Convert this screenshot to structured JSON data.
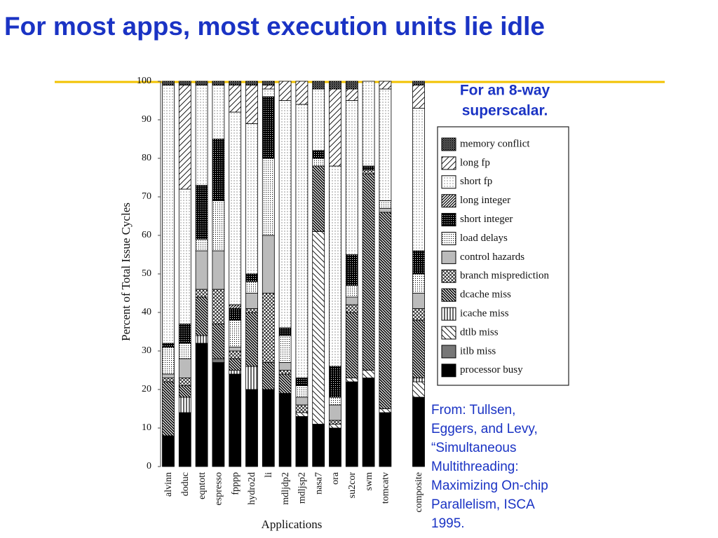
{
  "slide": {
    "title": "For most apps, most execution units lie idle",
    "note": [
      "For an 8-way",
      "superscalar."
    ],
    "source": [
      "From: Tullsen,",
      "Eggers, and Levy,",
      "“Simultaneous",
      "Multithreading:",
      "Maximizing On-chip",
      "Parallelism, ISCA",
      "1995."
    ]
  },
  "chart_data": {
    "type": "stacked-bar",
    "xlabel": "Applications",
    "ylabel": "Percent of Total Issue Cycles",
    "categories": [
      "alvinn",
      "doduc",
      "eqntott",
      "espresso",
      "fpppp",
      "hydro2d",
      "li",
      "mdljdp2",
      "mdljsp2",
      "nasa7",
      "ora",
      "su2cor",
      "swm",
      "tomcatv",
      "composite"
    ],
    "ylim": [
      0,
      100
    ],
    "yticks": [
      0,
      10,
      20,
      30,
      40,
      50,
      60,
      70,
      80,
      90,
      100
    ],
    "legend": "right",
    "series": [
      {
        "name": "processor busy",
        "pattern": "solid-black",
        "values": [
          8,
          14,
          32,
          27,
          24,
          20,
          20,
          19,
          13,
          11,
          10,
          22,
          23,
          14,
          18
        ]
      },
      {
        "name": "itlb miss",
        "pattern": "solid-gray",
        "values": [
          0,
          0,
          0,
          1,
          0,
          0,
          0,
          0,
          0,
          0,
          0,
          0,
          0,
          0,
          0
        ]
      },
      {
        "name": "dtlb miss",
        "pattern": "diag-sparse-back",
        "values": [
          0,
          0,
          0,
          0,
          0,
          0,
          0,
          0,
          1,
          50,
          1,
          1,
          2,
          1,
          4
        ]
      },
      {
        "name": "icache miss",
        "pattern": "vertical",
        "values": [
          0,
          4,
          2,
          0,
          1,
          6,
          0,
          0,
          0,
          0,
          0,
          0,
          0,
          0,
          1
        ]
      },
      {
        "name": "dcache miss",
        "pattern": "diag-dense-back",
        "values": [
          14,
          3,
          10,
          9,
          3,
          14,
          7,
          5,
          0,
          17,
          0,
          17,
          51,
          51,
          15
        ]
      },
      {
        "name": "branch misprediction",
        "pattern": "crosshatch",
        "values": [
          1,
          2,
          2,
          9,
          2,
          1,
          18,
          1,
          2,
          0,
          1,
          2,
          1,
          0,
          3
        ]
      },
      {
        "name": "control hazards",
        "pattern": "solid-lightgray",
        "values": [
          1,
          5,
          10,
          10,
          1,
          4,
          15,
          2,
          2,
          0,
          4,
          2,
          0,
          1,
          4
        ]
      },
      {
        "name": "load delays",
        "pattern": "dots-dense",
        "values": [
          7,
          4,
          3,
          13,
          7,
          3,
          20,
          7,
          3,
          2,
          2,
          3,
          0,
          2,
          5
        ]
      },
      {
        "name": "short integer",
        "pattern": "grid-dense",
        "values": [
          1,
          5,
          14,
          16,
          3,
          2,
          16,
          2,
          2,
          2,
          8,
          8,
          1,
          0,
          6
        ]
      },
      {
        "name": "long integer",
        "pattern": "diag-dense-fwd",
        "values": [
          0,
          0,
          0,
          0,
          1,
          0,
          0,
          0,
          0,
          0,
          0,
          0,
          0,
          0,
          0
        ]
      },
      {
        "name": "short fp",
        "pattern": "dots-sparse",
        "values": [
          67,
          35,
          26,
          14,
          50,
          39,
          2,
          59,
          71,
          16,
          52,
          40,
          22,
          29,
          37
        ]
      },
      {
        "name": "long fp",
        "pattern": "diag-sparse-fwd",
        "values": [
          0,
          27,
          0,
          0,
          7,
          10,
          1,
          5,
          6,
          0,
          20,
          3,
          0,
          2,
          6
        ]
      },
      {
        "name": "memory conflict",
        "pattern": "crosshatch-dense",
        "values": [
          1,
          1,
          1,
          1,
          1,
          1,
          1,
          0,
          0,
          2,
          2,
          2,
          0,
          0,
          1
        ]
      }
    ]
  }
}
